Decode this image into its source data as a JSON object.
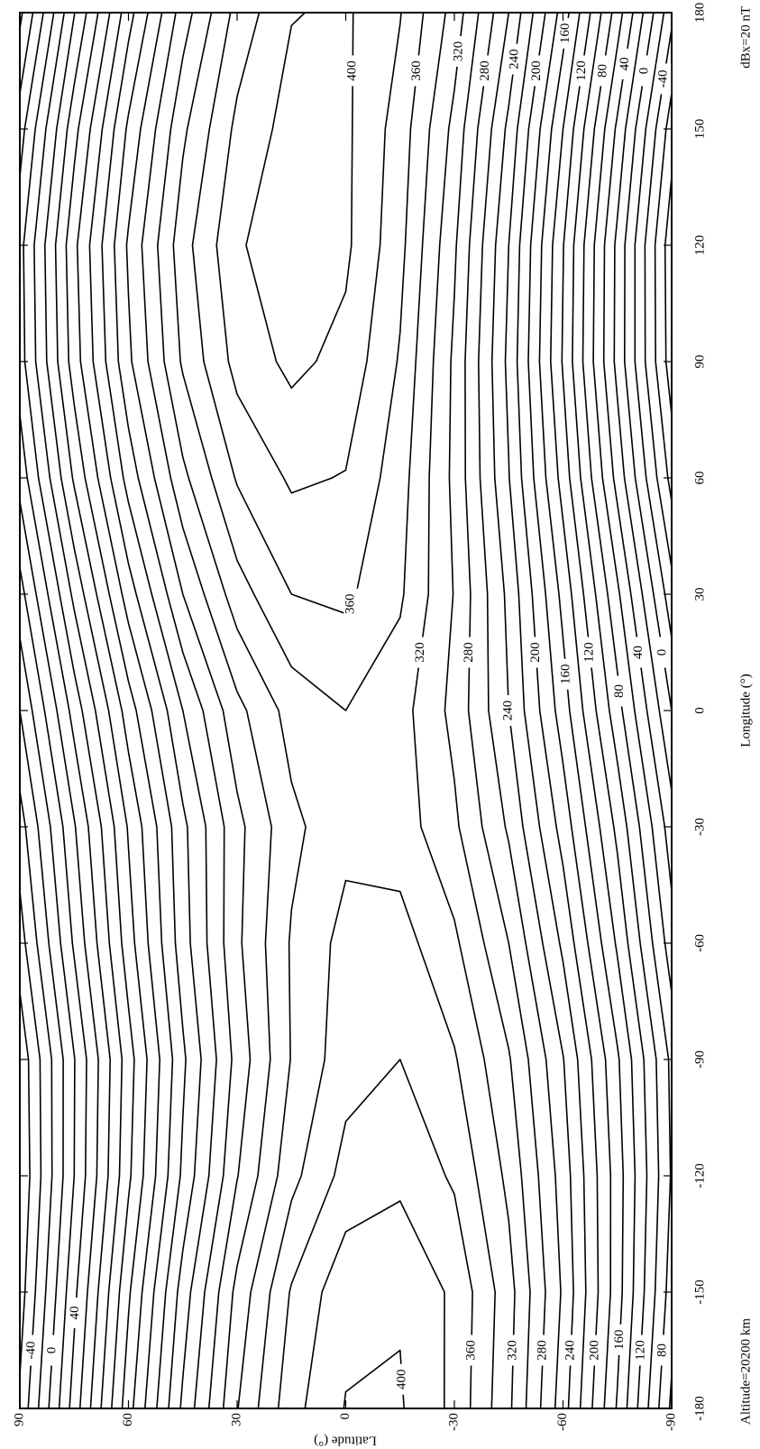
{
  "chart_data": {
    "type": "contour",
    "xlabel": "Longitude (°)",
    "ylabel": "Latitude (°)",
    "annotations": [
      "Altitude=20200 km",
      "dBx=20 nT"
    ],
    "x": [
      -180,
      -150,
      -120,
      -90,
      -60,
      -30,
      0,
      30,
      60,
      90,
      120,
      150,
      180
    ],
    "y": [
      -90,
      -75,
      -60,
      -45,
      -30,
      -15,
      0,
      15,
      30,
      45,
      60,
      75,
      90
    ],
    "z": [
      [
        56,
        70,
        78,
        75,
        49,
        29,
        0,
        -32,
        -67,
        -91,
        -93,
        -71,
        -35
      ],
      [
        158,
        169,
        170,
        163,
        137,
        115,
        88,
        64,
        33,
        14,
        15,
        36,
        70
      ],
      [
        249,
        257,
        251,
        241,
        216,
        192,
        170,
        154,
        132,
        118,
        121,
        140,
        171
      ],
      [
        324,
        328,
        315,
        302,
        280,
        257,
        240,
        235,
        221,
        215,
        220,
        235,
        260
      ],
      [
        375,
        376,
        357,
        342,
        324,
        304,
        294,
        299,
        295,
        296,
        303,
        314,
        332
      ],
      [
        402,
        398,
        375,
        360,
        348,
        330,
        328,
        343,
        349,
        358,
        366,
        371,
        381
      ],
      [
        401,
        394,
        367,
        352,
        347,
        334,
        340,
        364,
        379,
        394,
        404,
        404,
        403
      ],
      [
        373,
        362,
        334,
        321,
        322,
        315,
        328,
        360,
        383,
        405,
        415,
        408,
        399
      ],
      [
        319,
        306,
        279,
        267,
        276,
        274,
        294,
        331,
        362,
        387,
        397,
        385,
        367
      ],
      [
        244,
        229,
        204,
        196,
        211,
        215,
        240,
        280,
        315,
        343,
        352,
        336,
        310
      ],
      [
        152,
        137,
        116,
        111,
        131,
        142,
        170,
        210,
        248,
        276,
        283,
        264,
        232
      ],
      [
        49,
        35,
        20,
        19,
        43,
        58,
        88,
        125,
        163,
        190,
        195,
        173,
        139
      ],
      [
        -56,
        -70,
        -78,
        -75,
        -49,
        -29,
        0,
        32,
        67,
        91,
        93,
        71,
        35
      ]
    ],
    "levels": [
      -80,
      -60,
      -40,
      -20,
      0,
      20,
      40,
      60,
      80,
      100,
      120,
      140,
      160,
      180,
      200,
      220,
      240,
      260,
      280,
      300,
      320,
      340,
      360,
      380,
      400
    ],
    "color": "#000000",
    "xlim": [
      -180,
      180
    ],
    "xticks": [
      -180,
      -150,
      -120,
      -90,
      -60,
      -30,
      0,
      30,
      60,
      90,
      120,
      150,
      180
    ],
    "ylim": [
      -90,
      90
    ],
    "yticks": [
      -90,
      -60,
      -30,
      0,
      30,
      60,
      90
    ]
  }
}
